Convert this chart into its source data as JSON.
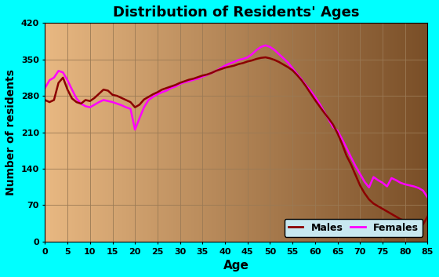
{
  "title": "Distribution of Residents' Ages",
  "xlabel": "Age",
  "ylabel": "Number of residents",
  "ylim": [
    0,
    420
  ],
  "xlim": [
    0,
    85
  ],
  "yticks": [
    0,
    70,
    140,
    210,
    280,
    350,
    420
  ],
  "xticks": [
    0,
    5,
    10,
    15,
    20,
    25,
    30,
    35,
    40,
    45,
    50,
    55,
    60,
    65,
    70,
    75,
    80,
    85
  ],
  "bg_outer": "#00ffff",
  "bg_inner_left": "#e8b882",
  "bg_inner_right": "#7a4f28",
  "grid_color": "#9a7a55",
  "males_color": "#8b0000",
  "females_color": "#ff00ff",
  "legend_bg": "#c8e8f0",
  "ages": [
    0,
    1,
    2,
    3,
    4,
    5,
    6,
    7,
    8,
    9,
    10,
    11,
    12,
    13,
    14,
    15,
    16,
    17,
    18,
    19,
    20,
    21,
    22,
    23,
    24,
    25,
    26,
    27,
    28,
    29,
    30,
    31,
    32,
    33,
    34,
    35,
    36,
    37,
    38,
    39,
    40,
    41,
    42,
    43,
    44,
    45,
    46,
    47,
    48,
    49,
    50,
    51,
    52,
    53,
    54,
    55,
    56,
    57,
    58,
    59,
    60,
    61,
    62,
    63,
    64,
    65,
    66,
    67,
    68,
    69,
    70,
    71,
    72,
    73,
    74,
    75,
    76,
    77,
    78,
    79,
    80,
    81,
    82,
    83,
    84,
    85
  ],
  "males": [
    272,
    268,
    272,
    305,
    315,
    292,
    275,
    268,
    265,
    272,
    270,
    276,
    284,
    292,
    290,
    282,
    280,
    276,
    272,
    268,
    258,
    263,
    273,
    278,
    283,
    287,
    292,
    295,
    298,
    301,
    305,
    308,
    311,
    313,
    316,
    319,
    321,
    324,
    328,
    331,
    334,
    336,
    338,
    341,
    343,
    346,
    348,
    351,
    353,
    354,
    352,
    349,
    345,
    340,
    335,
    329,
    320,
    310,
    298,
    285,
    272,
    260,
    248,
    237,
    225,
    208,
    188,
    165,
    148,
    128,
    108,
    93,
    81,
    73,
    68,
    63,
    58,
    53,
    48,
    43,
    40,
    38,
    36,
    34,
    33,
    48
  ],
  "females": [
    295,
    310,
    315,
    328,
    325,
    310,
    292,
    275,
    265,
    260,
    258,
    263,
    268,
    272,
    270,
    268,
    265,
    262,
    258,
    255,
    215,
    237,
    258,
    272,
    278,
    283,
    287,
    290,
    295,
    298,
    303,
    306,
    308,
    311,
    313,
    317,
    320,
    324,
    328,
    333,
    338,
    342,
    345,
    349,
    351,
    354,
    360,
    368,
    374,
    377,
    374,
    368,
    360,
    352,
    344,
    333,
    322,
    312,
    300,
    290,
    278,
    265,
    250,
    235,
    220,
    213,
    197,
    180,
    162,
    145,
    130,
    115,
    104,
    124,
    118,
    113,
    106,
    122,
    118,
    113,
    110,
    108,
    106,
    103,
    98,
    85
  ]
}
